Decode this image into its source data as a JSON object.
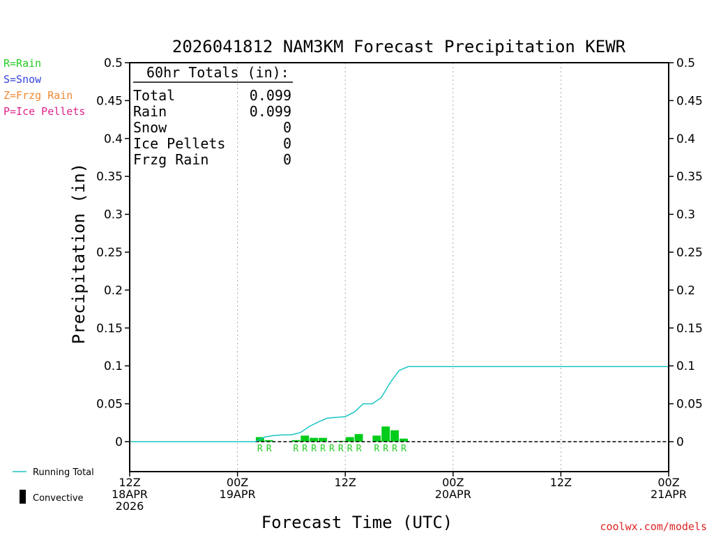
{
  "chart_data": {
    "type": "bar",
    "title": "2026041812 NAM3KM Forecast Precipitation KEWR",
    "xlabel": "Forecast Time (UTC)",
    "ylabel": "Precipitation (in)",
    "ylim": [
      -0.04,
      0.5
    ],
    "xlim_hours": [
      0,
      60
    ],
    "yticks": [
      0,
      0.05,
      0.1,
      0.15,
      0.2,
      0.25,
      0.3,
      0.35,
      0.4,
      0.45,
      0.5
    ],
    "ytick_labels_left": [
      "0",
      "0.05",
      "0.1",
      "0.15",
      "0.2",
      "0.25",
      "0.3",
      "0.35",
      "0.4",
      "0.45",
      "0.5"
    ],
    "ytick_labels_right": [
      "0",
      "0.05",
      "0.1",
      "0.15",
      "0.2",
      "0.25",
      "0.3",
      "0.35",
      "0.4",
      "0.45",
      "0.5"
    ],
    "xticks": [
      {
        "hour": 0,
        "lines": [
          "12Z",
          "18APR",
          "2026"
        ]
      },
      {
        "hour": 12,
        "lines": [
          "00Z",
          "19APR"
        ]
      },
      {
        "hour": 24,
        "lines": [
          "12Z"
        ]
      },
      {
        "hour": 36,
        "lines": [
          "00Z",
          "20APR"
        ]
      },
      {
        "hour": 48,
        "lines": [
          "12Z"
        ]
      },
      {
        "hour": 60,
        "lines": [
          "00Z",
          "21APR"
        ]
      }
    ],
    "bars": [
      {
        "hour": 15,
        "value": 0.006
      },
      {
        "hour": 16,
        "value": 0.002
      },
      {
        "hour": 19,
        "value": 0.002
      },
      {
        "hour": 20,
        "value": 0.008
      },
      {
        "hour": 21,
        "value": 0.005
      },
      {
        "hour": 22,
        "value": 0.005
      },
      {
        "hour": 24,
        "value": 0.001
      },
      {
        "hour": 25,
        "value": 0.006
      },
      {
        "hour": 26,
        "value": 0.01
      },
      {
        "hour": 28,
        "value": 0.008
      },
      {
        "hour": 29,
        "value": 0.02
      },
      {
        "hour": 30,
        "value": 0.015
      },
      {
        "hour": 31,
        "value": 0.004
      }
    ],
    "ptype_markers": [
      {
        "hour": 15,
        "label": "R"
      },
      {
        "hour": 16,
        "label": "R"
      },
      {
        "hour": 19,
        "label": "R"
      },
      {
        "hour": 20,
        "label": "R"
      },
      {
        "hour": 21,
        "label": "R"
      },
      {
        "hour": 22,
        "label": "R"
      },
      {
        "hour": 23,
        "label": "R"
      },
      {
        "hour": 24,
        "label": "R"
      },
      {
        "hour": 25,
        "label": "R"
      },
      {
        "hour": 26,
        "label": "R"
      },
      {
        "hour": 28,
        "label": "R"
      },
      {
        "hour": 29,
        "label": "R"
      },
      {
        "hour": 30,
        "label": "R"
      },
      {
        "hour": 31,
        "label": "R"
      }
    ],
    "running_total": {
      "hours": [
        0,
        14,
        15,
        16,
        17,
        18,
        19,
        20,
        21,
        22,
        23,
        24,
        25,
        26,
        27,
        28,
        29,
        30,
        31,
        32,
        60
      ],
      "values": [
        0,
        0,
        0.006,
        0.008,
        0.009,
        0.009,
        0.012,
        0.02,
        0.026,
        0.031,
        0.032,
        0.033,
        0.039,
        0.05,
        0.05,
        0.058,
        0.078,
        0.094,
        0.099,
        0.099,
        0.099
      ]
    },
    "totals_box": {
      "heading": "60hr Totals (in):",
      "rows": [
        {
          "label": "Total",
          "value": "0.099"
        },
        {
          "label": "Rain",
          "value": "0.099"
        },
        {
          "label": "Snow",
          "value": "0"
        },
        {
          "label": "Ice Pellets",
          "value": "0"
        },
        {
          "label": "Frzg Rain",
          "value": "0"
        }
      ]
    },
    "ptype_legend": [
      {
        "text": "R=Rain",
        "color": "#22cc22"
      },
      {
        "text": "S=Snow",
        "color": "#3344dd"
      },
      {
        "text": "Z=Frzg Rain",
        "color": "#ee8833"
      },
      {
        "text": "P=Ice Pellets",
        "color": "#dd2288"
      }
    ],
    "series_legend": [
      {
        "text": "Running Total",
        "color": "#19c4c4",
        "kind": "line"
      },
      {
        "text": "Convective",
        "color": "#000000",
        "kind": "bar"
      }
    ],
    "credit": "coolwx.com/models",
    "colors": {
      "bar": "#00cc1a",
      "running_total": "#19c4c4",
      "grid": "#aaaaaa",
      "zero_line": "#000000",
      "ptype": "#22cc22",
      "credit": "#dd2222"
    }
  }
}
